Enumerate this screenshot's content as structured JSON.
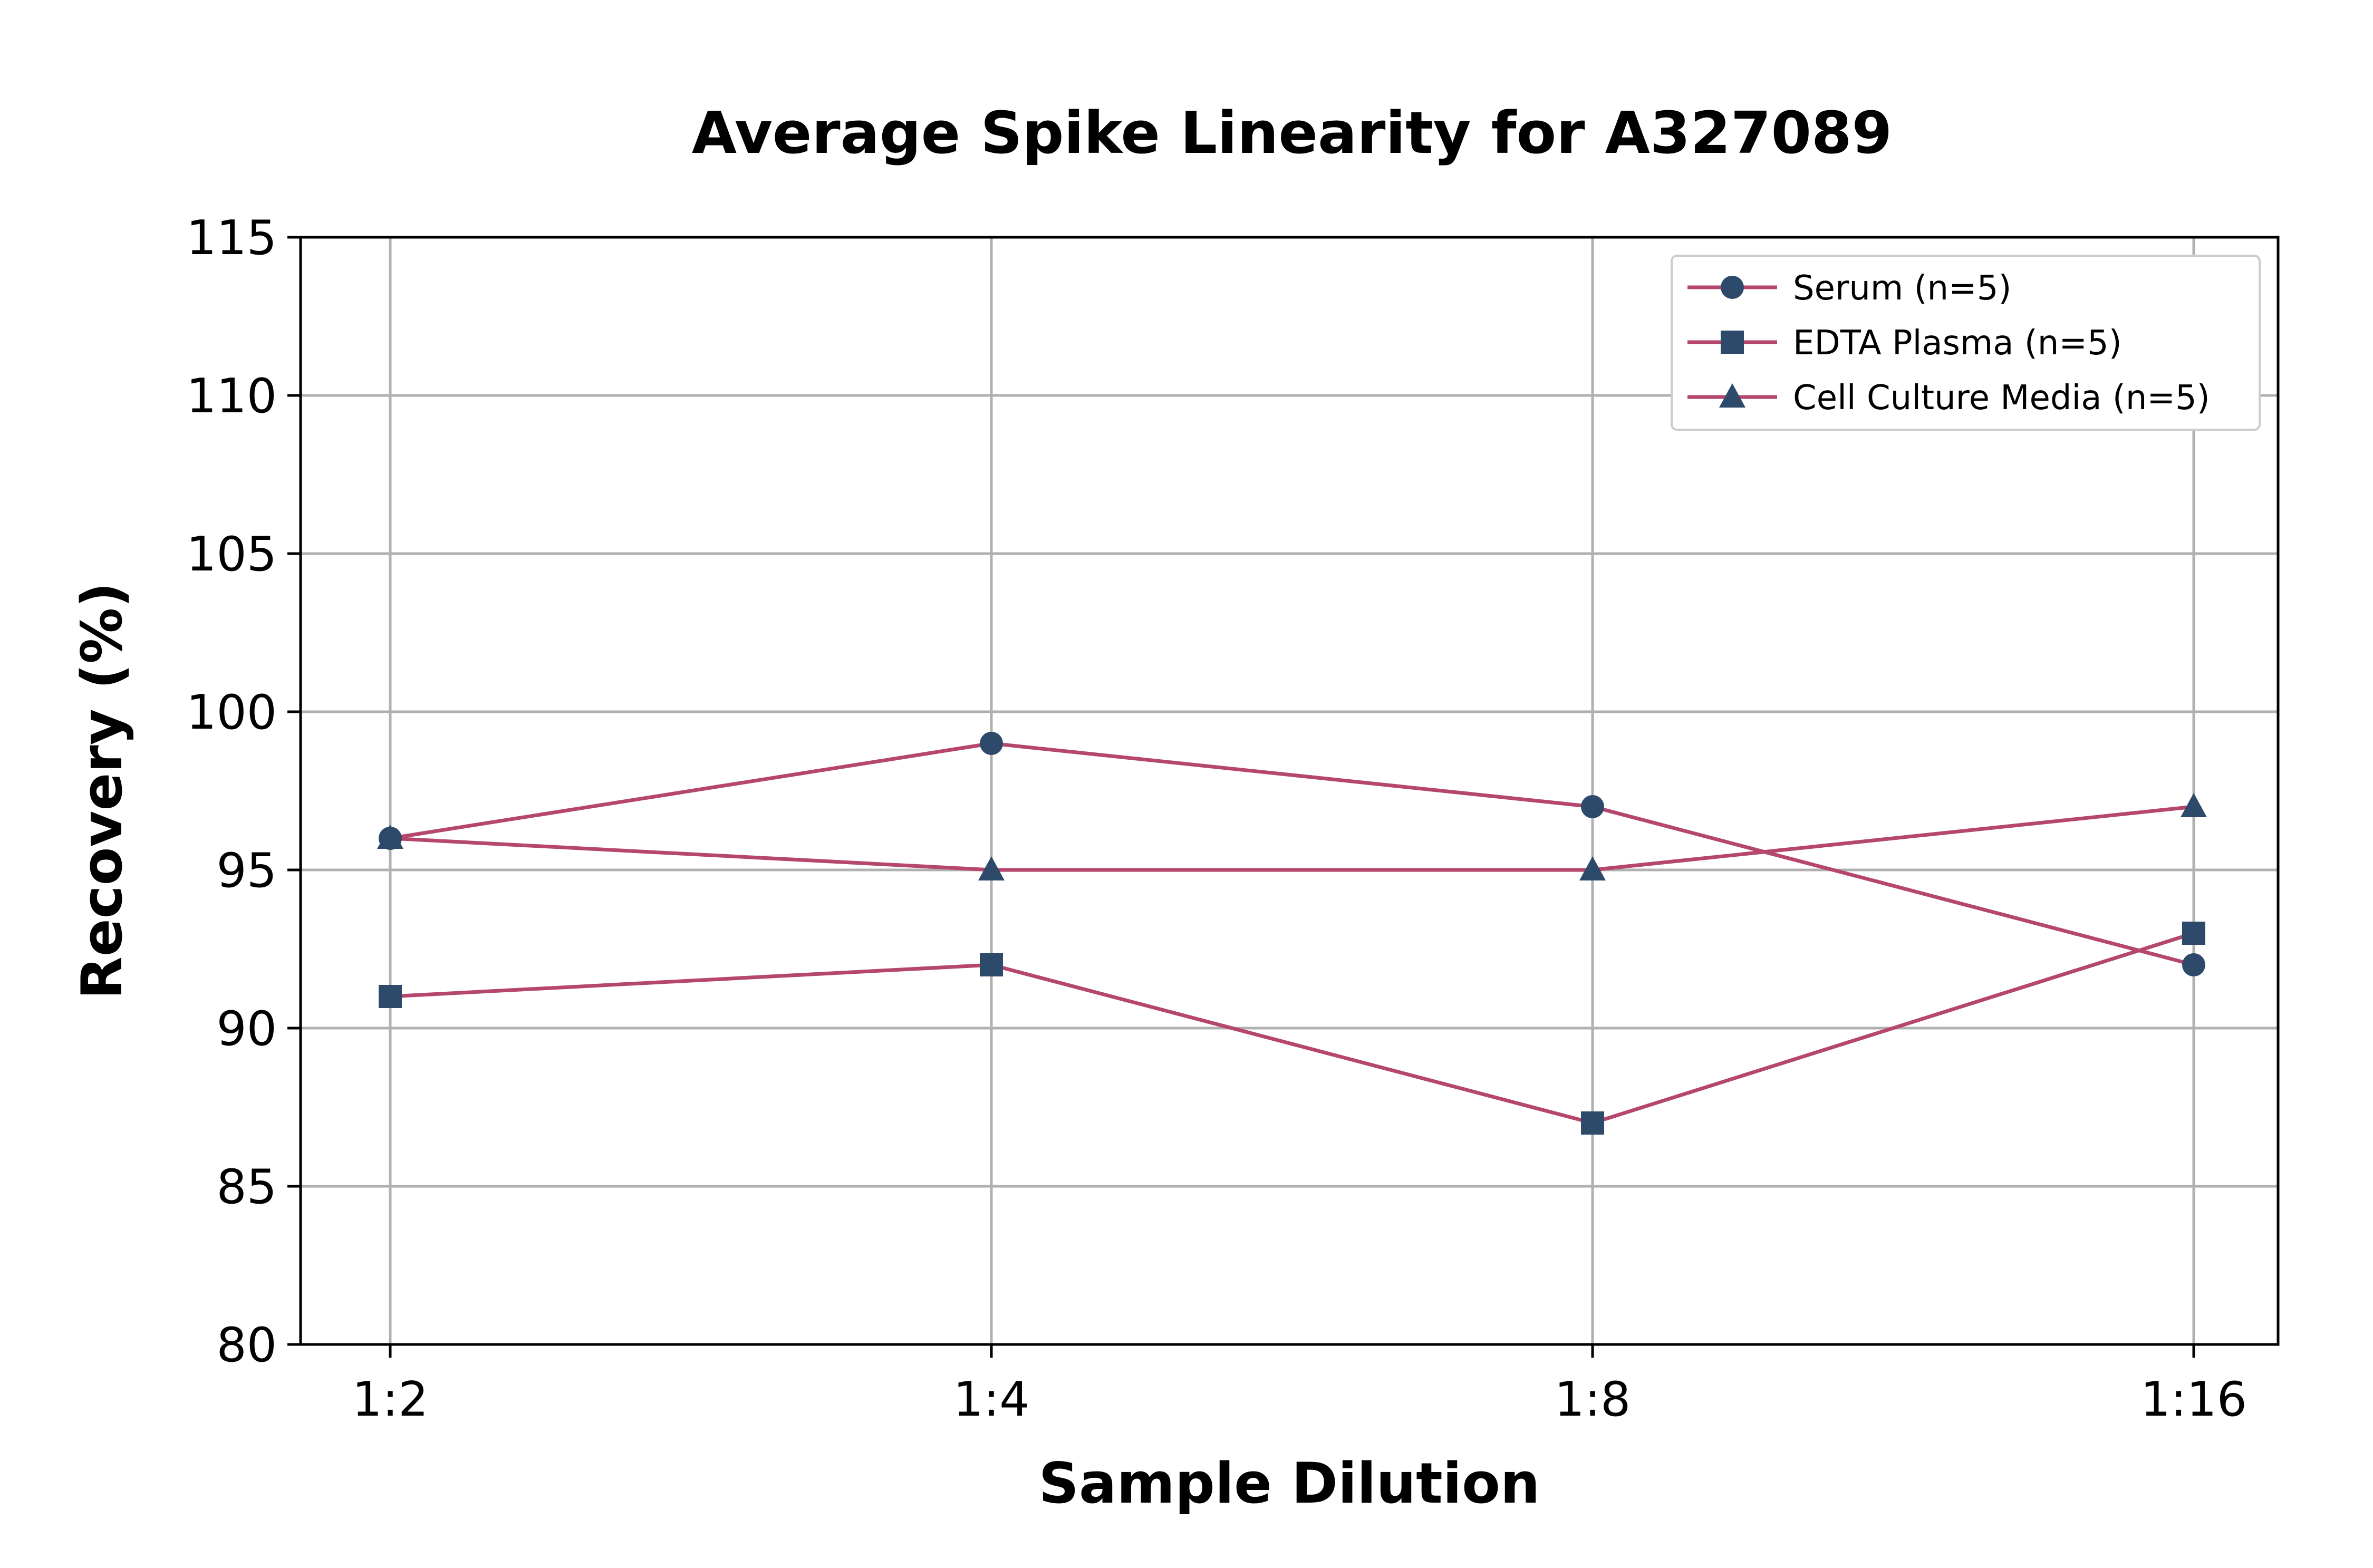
{
  "chart_data": {
    "type": "line",
    "title": "Average Spike Linearity for A327089",
    "xlabel": "Sample Dilution",
    "ylabel": "Recovery (%)",
    "categories": [
      "1:2",
      "1:4",
      "1:8",
      "1:16"
    ],
    "ylim": [
      80,
      115
    ],
    "yticks": [
      80,
      85,
      90,
      95,
      100,
      105,
      110,
      115
    ],
    "grid": true,
    "legend_position": "top-right",
    "line_color": "#b5466e",
    "marker_color": "#2e4a6b",
    "series": [
      {
        "name": "Serum (n=5)",
        "marker": "circle",
        "values": [
          96,
          99,
          97,
          92
        ]
      },
      {
        "name": "EDTA Plasma (n=5)",
        "marker": "square",
        "values": [
          91,
          92,
          87,
          93
        ]
      },
      {
        "name": "Cell Culture Media (n=5)",
        "marker": "triangle",
        "values": [
          96,
          95,
          95,
          97
        ]
      }
    ]
  }
}
